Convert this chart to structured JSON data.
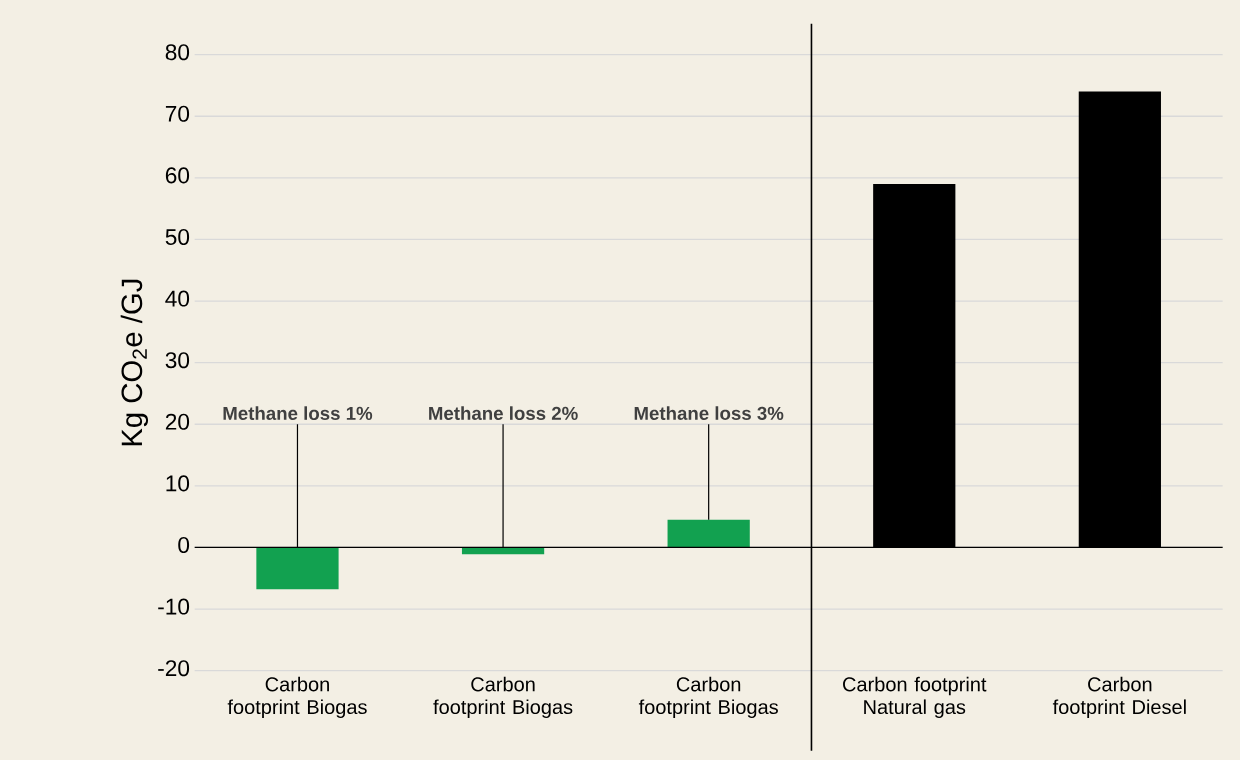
{
  "chart_data": {
    "type": "bar",
    "ylabel": "Kg CO$_{2}$e /GJ",
    "categories": [
      "Carbon footprint Biogas",
      "Carbon footprint Biogas",
      "Carbon footprint Biogas",
      "Carbon footprint Natural gas",
      "Carbon footprint Diesel"
    ],
    "values": [
      -6.8,
      -1.1,
      4.5,
      59,
      74
    ],
    "colors": [
      "#12a150",
      "#12a150",
      "#12a150",
      "#000000",
      "#000000"
    ],
    "ylim": [
      -20,
      80
    ],
    "yticks": [
      -20,
      -10,
      0,
      10,
      20,
      30,
      40,
      50,
      60,
      70,
      80
    ],
    "grid": "y",
    "annotations": [
      {
        "text": "Methane loss 1%",
        "y": 0
      },
      {
        "text": "Methane loss 2%",
        "y": 0
      },
      {
        "text": "Methane loss 3%",
        "y": 4.5
      }
    ]
  }
}
